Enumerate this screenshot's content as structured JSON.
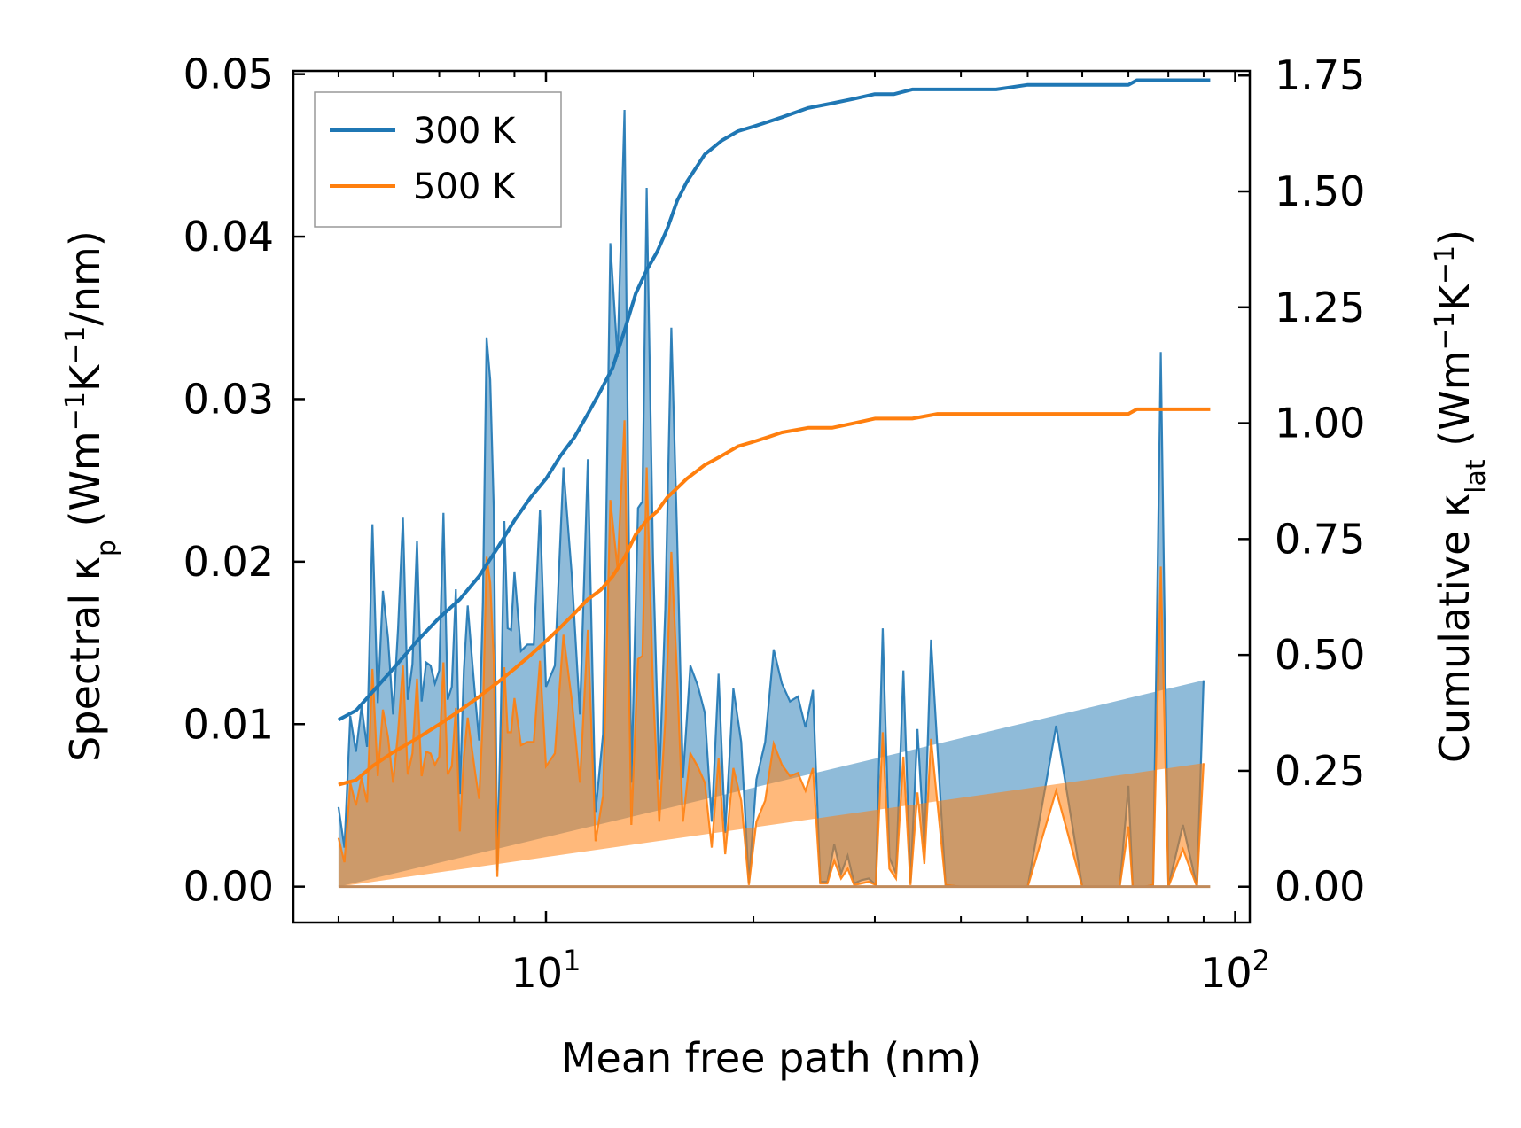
{
  "chart_data": {
    "type": "line",
    "xlabel": "Mean free path (nm)",
    "ylabel_left": "Spectral κp (Wm−1K−1/nm)",
    "ylabel_right": "Cumulative κlat (Wm−1K−1)",
    "xscale": "log",
    "xlim": [
      4.3,
      105
    ],
    "ylim_left": [
      -0.0022,
      0.0502
    ],
    "ylim_right": [
      -0.077,
      1.76
    ],
    "x_ticks": [
      10,
      100
    ],
    "x_tick_labels": [
      "10",
      "100"
    ],
    "x_tick_label_parts": [
      {
        "base": "10",
        "exp": "1"
      },
      {
        "base": "10",
        "exp": "2"
      }
    ],
    "y_left_ticks": [
      0.0,
      0.01,
      0.02,
      0.03,
      0.04,
      0.05
    ],
    "y_left_tick_labels": [
      "0.00",
      "0.01",
      "0.02",
      "0.03",
      "0.04",
      "0.05"
    ],
    "y_right_ticks": [
      0.0,
      0.25,
      0.5,
      0.75,
      1.0,
      1.25,
      1.5,
      1.75
    ],
    "y_right_tick_labels": [
      "0.00",
      "0.25",
      "0.50",
      "0.75",
      "1.00",
      "1.25",
      "1.50",
      "1.75"
    ],
    "legend": {
      "location": "upper left",
      "entries": [
        {
          "label": "300 K",
          "color": "#1f77b4"
        },
        {
          "label": "500 K",
          "color": "#ff7f0e"
        }
      ]
    },
    "spectral_x": [
      5.0,
      5.1,
      5.2,
      5.3,
      5.4,
      5.5,
      5.6,
      5.7,
      5.8,
      5.9,
      6.0,
      6.1,
      6.2,
      6.3,
      6.4,
      6.5,
      6.6,
      6.7,
      6.8,
      6.9,
      7.0,
      7.1,
      7.2,
      7.3,
      7.4,
      7.5,
      7.6,
      7.7,
      7.8,
      7.9,
      8.0,
      8.1,
      8.2,
      8.3,
      8.4,
      8.5,
      8.6,
      8.7,
      8.8,
      8.9,
      9.0,
      9.2,
      9.4,
      9.6,
      9.8,
      10.0,
      10.3,
      10.6,
      10.9,
      11.2,
      11.5,
      11.8,
      12.1,
      12.4,
      12.7,
      13.0,
      13.3,
      13.6,
      13.8,
      14.0,
      14.3,
      14.6,
      14.9,
      15.2,
      15.5,
      15.8,
      16.2,
      16.6,
      17.0,
      17.4,
      17.8,
      18.2,
      18.7,
      19.2,
      19.7,
      20.2,
      20.8,
      21.4,
      22.0,
      22.6,
      23.2,
      23.8,
      24.4,
      25.0,
      25.6,
      26.2,
      26.8,
      27.4,
      28.0,
      28.7,
      29.4,
      30.1,
      30.8,
      31.5,
      32.2,
      33.0,
      33.8,
      34.6,
      35.4,
      36.2,
      38.0,
      40.0,
      42.0,
      44.0,
      46.0,
      48.0,
      50.0,
      55.0,
      60.0,
      62.0,
      64.0,
      66.0,
      68.0,
      70.0,
      71.0,
      72.0,
      74.0,
      76.0,
      78.0,
      80.0,
      84.0,
      88.0,
      90.0,
      92.0
    ],
    "series": [
      {
        "name": "300 K",
        "color": "#1f77b4",
        "spectral": [
          0.0049,
          0.0024,
          0.0105,
          0.0083,
          0.0111,
          0.0086,
          0.0223,
          0.0113,
          0.0182,
          0.0153,
          0.0106,
          0.0159,
          0.0227,
          0.0115,
          0.0137,
          0.0213,
          0.0114,
          0.0138,
          0.0136,
          0.0125,
          0.0133,
          0.023,
          0.0115,
          0.0123,
          0.0183,
          0.0057,
          0.0133,
          0.0173,
          0.0143,
          0.0115,
          0.009,
          0.0175,
          0.0338,
          0.0312,
          0.0233,
          0.001,
          0.0107,
          0.0225,
          0.0159,
          0.0158,
          0.0194,
          0.0145,
          0.0149,
          0.0149,
          0.0232,
          0.0123,
          0.0136,
          0.0258,
          0.0192,
          0.0106,
          0.0263,
          0.0046,
          0.0094,
          0.0396,
          0.0326,
          0.0478,
          0.0064,
          0.0233,
          0.0237,
          0.043,
          0.0202,
          0.0066,
          0.0171,
          0.0344,
          0.0215,
          0.0067,
          0.0136,
          0.0124,
          0.0107,
          0.004,
          0.0131,
          0.0033,
          0.0122,
          0.0089,
          0.0002,
          0.0066,
          0.0089,
          0.0146,
          0.0125,
          0.0114,
          0.0117,
          0.0098,
          0.0121,
          0.0003,
          0.0003,
          0.0026,
          0.0008,
          0.0019,
          0.0002,
          0.0004,
          0.0005,
          0.0001,
          0.0159,
          0.0018,
          0.0008,
          0.0133,
          0.0002,
          0.0097,
          0.0024,
          0.0152,
          0.0001,
          0.0,
          0.0,
          0.0,
          0.0,
          0.0,
          0.0,
          0.0099,
          0.0,
          0.0,
          0.0,
          0.0,
          0.0,
          0.0062,
          0.0,
          0.0,
          0.0,
          0.0001,
          0.0329,
          0.0,
          0.0038,
          0.0,
          0.0127
        ],
        "cumulative_x": [
          5.0,
          5.3,
          5.6,
          6.0,
          6.5,
          7.0,
          7.5,
          8.0,
          8.5,
          9.0,
          9.5,
          10.0,
          10.5,
          11.0,
          11.5,
          12.0,
          12.5,
          13.0,
          13.5,
          14.0,
          14.5,
          15.0,
          15.5,
          16.0,
          17.0,
          18.0,
          19.0,
          20.0,
          21.0,
          22.0,
          24.0,
          26.0,
          28.0,
          30.0,
          32.0,
          34.0,
          37.0,
          40.0,
          45.0,
          50.0,
          60.0,
          70.0,
          72.0,
          80.0,
          90.0,
          92.0
        ],
        "cumulative": [
          0.36,
          0.38,
          0.42,
          0.47,
          0.53,
          0.58,
          0.62,
          0.67,
          0.73,
          0.79,
          0.84,
          0.88,
          0.93,
          0.97,
          1.02,
          1.07,
          1.12,
          1.2,
          1.28,
          1.33,
          1.37,
          1.42,
          1.48,
          1.52,
          1.58,
          1.61,
          1.63,
          1.64,
          1.65,
          1.66,
          1.68,
          1.69,
          1.7,
          1.71,
          1.71,
          1.72,
          1.72,
          1.72,
          1.72,
          1.73,
          1.73,
          1.73,
          1.74,
          1.74,
          1.74,
          1.74
        ]
      },
      {
        "name": "500 K",
        "color": "#ff7f0e",
        "spectral": [
          0.003,
          0.0015,
          0.0064,
          0.005,
          0.0067,
          0.0052,
          0.0134,
          0.0068,
          0.0109,
          0.0092,
          0.0064,
          0.0095,
          0.0136,
          0.0069,
          0.0082,
          0.0128,
          0.0068,
          0.0083,
          0.0082,
          0.0075,
          0.008,
          0.0138,
          0.0069,
          0.0074,
          0.011,
          0.0034,
          0.008,
          0.0104,
          0.0086,
          0.0069,
          0.0054,
          0.0105,
          0.0203,
          0.0187,
          0.014,
          0.0006,
          0.0064,
          0.0135,
          0.0095,
          0.0095,
          0.0116,
          0.0087,
          0.0089,
          0.0089,
          0.0139,
          0.0074,
          0.0082,
          0.0155,
          0.0115,
          0.0064,
          0.0158,
          0.0028,
          0.0056,
          0.0238,
          0.0196,
          0.0287,
          0.0038,
          0.014,
          0.0142,
          0.0258,
          0.0121,
          0.004,
          0.0103,
          0.0206,
          0.0129,
          0.004,
          0.0082,
          0.0074,
          0.0064,
          0.0024,
          0.0079,
          0.002,
          0.0073,
          0.0053,
          0.0001,
          0.004,
          0.0053,
          0.0088,
          0.0075,
          0.0068,
          0.007,
          0.0059,
          0.0073,
          0.0002,
          0.0002,
          0.0016,
          0.0005,
          0.0011,
          0.0001,
          0.0002,
          0.0003,
          0.0001,
          0.0095,
          0.0011,
          0.0005,
          0.008,
          0.0001,
          0.0058,
          0.0014,
          0.0091,
          0.0001,
          0.0,
          0.0,
          0.0,
          0.0,
          0.0,
          0.0,
          0.0059,
          0.0,
          0.0,
          0.0,
          0.0,
          0.0,
          0.0037,
          0.0,
          0.0,
          0.0,
          0.0001,
          0.0197,
          0.0,
          0.0023,
          0.0,
          0.0076
        ],
        "cumulative_x": [
          5.0,
          5.3,
          5.6,
          6.0,
          6.5,
          7.0,
          7.5,
          8.0,
          8.5,
          9.0,
          9.5,
          10.0,
          10.5,
          11.0,
          11.5,
          12.0,
          12.5,
          13.0,
          13.5,
          14.0,
          14.5,
          15.0,
          15.5,
          16.0,
          17.0,
          18.0,
          19.0,
          20.0,
          21.0,
          22.0,
          24.0,
          26.0,
          28.0,
          30.0,
          32.0,
          34.0,
          37.0,
          40.0,
          45.0,
          50.0,
          60.0,
          70.0,
          72.0,
          80.0,
          90.0,
          92.0
        ],
        "cumulative": [
          0.22,
          0.23,
          0.26,
          0.29,
          0.32,
          0.35,
          0.38,
          0.41,
          0.44,
          0.47,
          0.5,
          0.53,
          0.56,
          0.59,
          0.62,
          0.64,
          0.67,
          0.71,
          0.76,
          0.79,
          0.81,
          0.84,
          0.86,
          0.88,
          0.91,
          0.93,
          0.95,
          0.96,
          0.97,
          0.98,
          0.99,
          0.99,
          1.0,
          1.01,
          1.01,
          1.01,
          1.02,
          1.02,
          1.02,
          1.02,
          1.02,
          1.02,
          1.03,
          1.03,
          1.03,
          1.03
        ]
      }
    ]
  }
}
